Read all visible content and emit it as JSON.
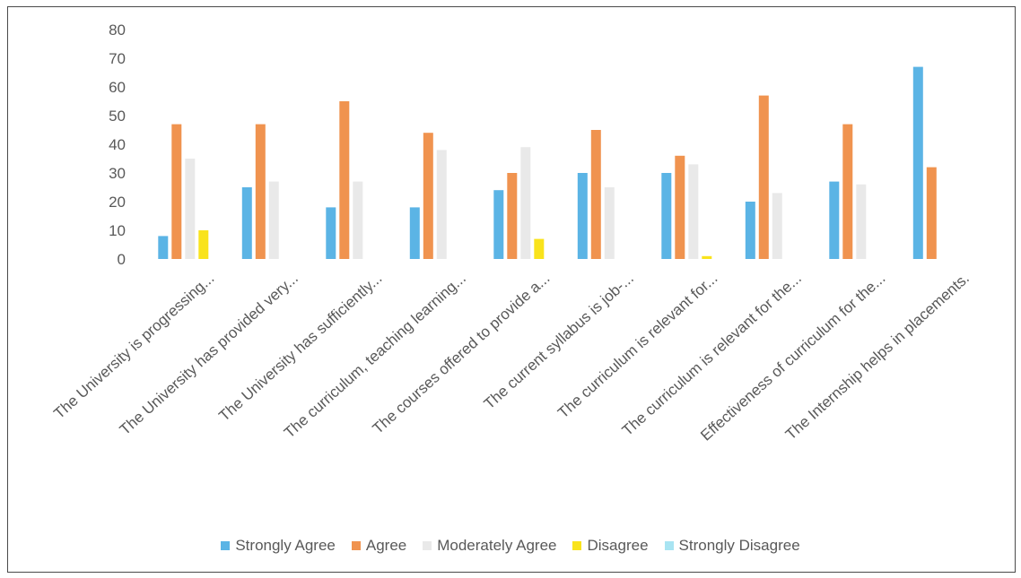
{
  "chart_data": {
    "type": "bar",
    "title": "",
    "xlabel": "",
    "ylabel": "",
    "ylim": [
      0,
      80
    ],
    "yticks": [
      0,
      10,
      20,
      30,
      40,
      50,
      60,
      70,
      80
    ],
    "grid": false,
    "legend_position": "bottom",
    "categories": [
      "The University is progressing...",
      "The University has provided very...",
      "The University has sufficiently...",
      "The curriculum, teaching learning...",
      "The courses offered to provide a...",
      "The current syllabus is job-...",
      "The curriculum is relevant for...",
      "The curriculum is relevant for the...",
      "Effectiveness of curriculum for the...",
      "The Internship helps in placements."
    ],
    "series": [
      {
        "name": "Strongly Agree",
        "color": "#5bb4e5",
        "values": [
          8,
          25,
          18,
          18,
          24,
          30,
          30,
          20,
          27,
          67
        ]
      },
      {
        "name": "Agree",
        "color": "#f0934f",
        "values": [
          47,
          47,
          55,
          44,
          30,
          45,
          36,
          57,
          47,
          32
        ]
      },
      {
        "name": "Moderately Agree",
        "color": "#e9e9e9",
        "values": [
          35,
          27,
          27,
          38,
          39,
          25,
          33,
          23,
          26,
          0
        ]
      },
      {
        "name": "Disagree",
        "color": "#f9e31c",
        "values": [
          10,
          0,
          0,
          0,
          7,
          0,
          1,
          0,
          0,
          0
        ]
      },
      {
        "name": "Strongly Disagree",
        "color": "#a8e4f2",
        "values": [
          0,
          0,
          0,
          0,
          0,
          0,
          0,
          0,
          0,
          0
        ]
      }
    ]
  }
}
